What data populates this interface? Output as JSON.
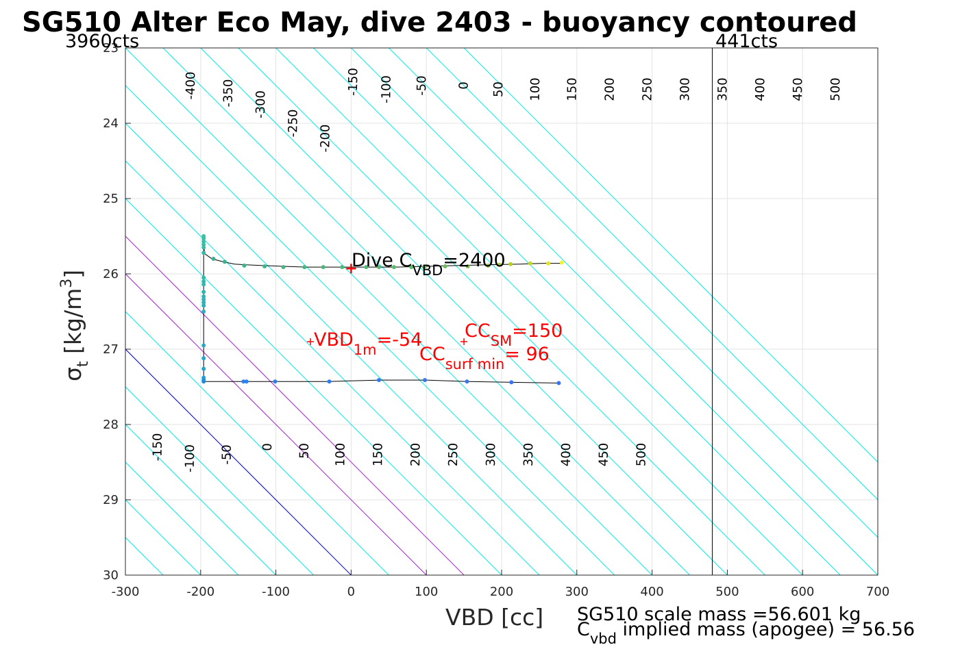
{
  "chart_data": {
    "type": "scatter",
    "title": "SG510 Alter Eco May, dive 2403 - buoyancy contoured",
    "xlabel": "VBD [cc]",
    "ylabel": {
      "main": "σ",
      "sub": "t",
      "unit_pre": " [kg/m",
      "unit_sup": "3",
      "unit_post": "]"
    },
    "xlim": [
      -300,
      700
    ],
    "ylim": [
      23,
      30
    ],
    "y_reversed": true,
    "grid": true,
    "x_ticks": [
      "-300",
      "-200",
      "-100",
      "0",
      "100",
      "200",
      "300",
      "400",
      "500",
      "600",
      "700"
    ],
    "y_ticks": [
      "23",
      "24",
      "25",
      "26",
      "27",
      "28",
      "29",
      "30"
    ],
    "contour_slope_cc_per_sigma": 100,
    "contours": {
      "levels": [
        -400,
        -350,
        -300,
        -250,
        -200,
        -150,
        -100,
        -50,
        0,
        50,
        100,
        150,
        200,
        250,
        300,
        350,
        400,
        450,
        500,
        550,
        600,
        650,
        700,
        750,
        800,
        850
      ],
      "zero_level": 0,
      "highlight_levels": [
        100,
        150
      ],
      "colors": {
        "default": "#00eeee",
        "zero": "#0000cc",
        "highlight": "#aa22dd"
      },
      "top_labels": [
        {
          "text": "-400",
          "x": -213,
          "y": 23.5
        },
        {
          "text": "-350",
          "x": -163,
          "y": 23.6
        },
        {
          "text": "-300",
          "x": -120,
          "y": 23.75
        },
        {
          "text": "-250",
          "x": -77,
          "y": 24.0
        },
        {
          "text": "-200",
          "x": -34,
          "y": 24.2
        },
        {
          "text": "-150",
          "x": 3,
          "y": 23.45
        },
        {
          "text": "-100",
          "x": 47,
          "y": 23.55
        },
        {
          "text": "-50",
          "x": 94,
          "y": 23.5
        },
        {
          "text": "0",
          "x": 150,
          "y": 23.5
        },
        {
          "text": "50",
          "x": 196,
          "y": 23.55
        },
        {
          "text": "100",
          "x": 245,
          "y": 23.55
        },
        {
          "text": "150",
          "x": 294,
          "y": 23.55
        },
        {
          "text": "200",
          "x": 344,
          "y": 23.55
        },
        {
          "text": "250",
          "x": 394,
          "y": 23.55
        },
        {
          "text": "300",
          "x": 444,
          "y": 23.55
        },
        {
          "text": "350",
          "x": 494,
          "y": 23.55
        },
        {
          "text": "400",
          "x": 544,
          "y": 23.55
        },
        {
          "text": "450",
          "x": 594,
          "y": 23.55
        },
        {
          "text": "500",
          "x": 644,
          "y": 23.55
        }
      ],
      "bottom_labels": [
        {
          "text": "-150",
          "x": -257,
          "y": 28.3
        },
        {
          "text": "-100",
          "x": -214,
          "y": 28.45
        },
        {
          "text": "-50",
          "x": -165,
          "y": 28.4
        },
        {
          "text": "0",
          "x": -111,
          "y": 28.3
        },
        {
          "text": "50",
          "x": -62,
          "y": 28.35
        },
        {
          "text": "100",
          "x": -14,
          "y": 28.4
        },
        {
          "text": "150",
          "x": 36,
          "y": 28.4
        },
        {
          "text": "200",
          "x": 86,
          "y": 28.4
        },
        {
          "text": "250",
          "x": 136,
          "y": 28.4
        },
        {
          "text": "300",
          "x": 186,
          "y": 28.4
        },
        {
          "text": "350",
          "x": 236,
          "y": 28.4
        },
        {
          "text": "400",
          "x": 286,
          "y": 28.4
        },
        {
          "text": "450",
          "x": 336,
          "y": 28.4
        },
        {
          "text": "500",
          "x": 386,
          "y": 28.4
        }
      ]
    },
    "vbd_limits": {
      "min": {
        "x": -200,
        "label": "3960cts"
      },
      "max": {
        "x": 480,
        "label": "441cts"
      }
    },
    "dive_profile": {
      "color": "#000000",
      "x": [
        280,
        255,
        225,
        180,
        140,
        100,
        60,
        20,
        0,
        -30,
        -60,
        -90,
        -115,
        -140,
        -155,
        -170,
        -185,
        -195,
        -196,
        -196,
        -196,
        -196,
        -196,
        -196,
        -196,
        -196,
        -196,
        -196,
        -196,
        -196,
        -165,
        -140,
        -100,
        -30,
        0,
        40,
        100,
        155,
        215,
        277
      ],
      "y": [
        25.86,
        25.86,
        25.87,
        25.88,
        25.89,
        25.9,
        25.91,
        25.91,
        25.91,
        25.91,
        25.91,
        25.9,
        25.89,
        25.88,
        25.87,
        25.84,
        25.8,
        25.73,
        25.5,
        25.6,
        25.7,
        26.1,
        26.25,
        26.35,
        26.5,
        26.9,
        27.1,
        27.3,
        27.4,
        27.43,
        27.43,
        27.43,
        27.43,
        27.43,
        27.42,
        27.41,
        27.41,
        27.43,
        27.44,
        27.45
      ]
    },
    "points": [
      {
        "x": 280,
        "y": 25.85,
        "c": "#f5f523"
      },
      {
        "x": 262,
        "y": 25.86,
        "c": "#e6e21e"
      },
      {
        "x": 238,
        "y": 25.86,
        "c": "#d1d51a"
      },
      {
        "x": 212,
        "y": 25.87,
        "c": "#b9cf1e"
      },
      {
        "x": 197,
        "y": 25.88,
        "c": "#a0c928"
      },
      {
        "x": 182,
        "y": 25.89,
        "c": "#8dc63b"
      },
      {
        "x": 155,
        "y": 25.9,
        "c": "#78c24c"
      },
      {
        "x": 125,
        "y": 25.9,
        "c": "#6bbf5a"
      },
      {
        "x": 97,
        "y": 25.91,
        "c": "#62bd63"
      },
      {
        "x": 80,
        "y": 25.91,
        "c": "#5dbc68"
      },
      {
        "x": 57,
        "y": 25.91,
        "c": "#58bb6c"
      },
      {
        "x": 37,
        "y": 25.91,
        "c": "#55ba70"
      },
      {
        "x": 20,
        "y": 25.91,
        "c": "#52b974"
      },
      {
        "x": -12,
        "y": 25.91,
        "c": "#4eb877"
      },
      {
        "x": -37,
        "y": 25.91,
        "c": "#4bb77b"
      },
      {
        "x": -62,
        "y": 25.91,
        "c": "#48b67f"
      },
      {
        "x": -90,
        "y": 25.91,
        "c": "#45b583"
      },
      {
        "x": -115,
        "y": 25.9,
        "c": "#42b487"
      },
      {
        "x": -142,
        "y": 25.89,
        "c": "#3fb48b"
      },
      {
        "x": -168,
        "y": 25.84,
        "c": "#3cb38f"
      },
      {
        "x": -183,
        "y": 25.8,
        "c": "#39b393"
      },
      {
        "x": -196,
        "y": 25.5,
        "c": "#36c2a6"
      },
      {
        "x": -196,
        "y": 25.53,
        "c": "#36c2a6"
      },
      {
        "x": -196,
        "y": 25.57,
        "c": "#36c2a6"
      },
      {
        "x": -196,
        "y": 25.61,
        "c": "#35c0a8"
      },
      {
        "x": -196,
        "y": 25.65,
        "c": "#34bfa9"
      },
      {
        "x": -196,
        "y": 25.72,
        "c": "#33beab"
      },
      {
        "x": -196,
        "y": 26.05,
        "c": "#2fbaae"
      },
      {
        "x": -196,
        "y": 26.1,
        "c": "#2eb9b0"
      },
      {
        "x": -196,
        "y": 26.14,
        "c": "#2db8b2"
      },
      {
        "x": -196,
        "y": 26.24,
        "c": "#2cb7b4"
      },
      {
        "x": -196,
        "y": 26.3,
        "c": "#2bb6b6"
      },
      {
        "x": -196,
        "y": 26.34,
        "c": "#2ab5b8"
      },
      {
        "x": -196,
        "y": 26.38,
        "c": "#29b4ba"
      },
      {
        "x": -196,
        "y": 26.42,
        "c": "#28b3bc"
      },
      {
        "x": -196,
        "y": 26.5,
        "c": "#27b2be"
      },
      {
        "x": -196,
        "y": 26.95,
        "c": "#22acc6"
      },
      {
        "x": -196,
        "y": 27.12,
        "c": "#20a9ca"
      },
      {
        "x": -196,
        "y": 27.26,
        "c": "#1ea6ce"
      },
      {
        "x": -196,
        "y": 27.38,
        "c": "#1a9fd6"
      },
      {
        "x": -196,
        "y": 27.41,
        "c": "#1898dc"
      },
      {
        "x": -196,
        "y": 27.43,
        "c": "#1690e2"
      },
      {
        "x": -143,
        "y": 27.43,
        "c": "#2d80f0"
      },
      {
        "x": -139,
        "y": 27.43,
        "c": "#2d80f0"
      },
      {
        "x": -101,
        "y": 27.43,
        "c": "#2f7ef2"
      },
      {
        "x": -29,
        "y": 27.43,
        "c": "#307cf4"
      },
      {
        "x": 37,
        "y": 27.41,
        "c": "#327af5"
      },
      {
        "x": 98,
        "y": 27.41,
        "c": "#3478f6"
      },
      {
        "x": 154,
        "y": 27.43,
        "c": "#3676f7"
      },
      {
        "x": 213,
        "y": 27.44,
        "c": "#3874f8"
      },
      {
        "x": 276,
        "y": 27.45,
        "c": "#3a72f9"
      }
    ],
    "annotations": {
      "dive_cvbd": {
        "main": "Dive C",
        "sub": "VBD",
        "post": "=2400",
        "marker_x": 0,
        "marker_y": 25.93
      },
      "vbd_1m": {
        "main": "VBD",
        "sub": "1m",
        "post": "=-54",
        "marker_x": -54,
        "marker_y": 26.9
      },
      "cc_sm": {
        "main": "CC",
        "sub": "SM",
        "post": "=150",
        "marker_x": 150,
        "marker_y": 26.9
      },
      "cc_surf_min": {
        "main": "CC",
        "sub": "surf min",
        "post": "= 96"
      }
    },
    "footer": {
      "scale_mass": "SG510 scale mass =56.601 kg",
      "implied_mass": {
        "main": "C",
        "sub": "vbd",
        "post": " implied mass (apogee) = 56.56"
      }
    }
  }
}
